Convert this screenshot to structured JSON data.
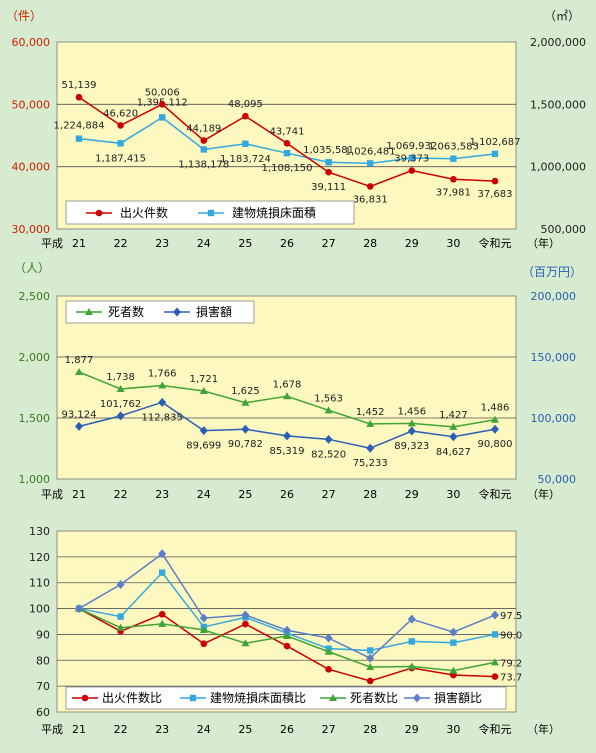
{
  "chart_data": [
    {
      "type": "line",
      "title": "",
      "ylabel_left": "（件）",
      "ylabel_right": "（㎡）",
      "x_prefix": "平成",
      "x_suffix": "（年）",
      "categories": [
        "21",
        "22",
        "23",
        "24",
        "25",
        "26",
        "27",
        "28",
        "29",
        "30",
        "令和元"
      ],
      "ylim_left": [
        30000,
        60000
      ],
      "ylim_right": [
        500000,
        2000000
      ],
      "yticks_left": [
        "30,000",
        "40,000",
        "50,000",
        "60,000"
      ],
      "yticks_right": [
        "500,000",
        "1,000,000",
        "1,500,000",
        "2,000,000"
      ],
      "legend_position": "bottom-left",
      "series": [
        {
          "name": "出火件数",
          "axis": "left",
          "color": "#cc0000",
          "marker": "circle",
          "values": [
            51139,
            46620,
            50006,
            44189,
            48095,
            43741,
            39111,
            36831,
            39373,
            37981,
            37683
          ],
          "labels": [
            "51,139",
            "46,620",
            "50,006",
            "44,189",
            "48,095",
            "43,741",
            "39,111",
            "36,831",
            "39,373",
            "37,981",
            "37,683"
          ]
        },
        {
          "name": "建物焼損床面積",
          "axis": "right",
          "color": "#33a8e0",
          "marker": "square",
          "values": [
            1224884,
            1187415,
            1395112,
            1138178,
            1183724,
            1108150,
            1035581,
            1026481,
            1069932,
            1063583,
            1102687
          ],
          "labels": [
            "1,224,884",
            "1,187,415",
            "1,395,112",
            "1,138,178",
            "1,183,724",
            "1,108,150",
            "1,035,581",
            "1,026,481",
            "1,069,932",
            "1,063,583",
            "1,102,687"
          ]
        }
      ]
    },
    {
      "type": "line",
      "title": "",
      "ylabel_left": "（人）",
      "ylabel_right": "（百万円）",
      "x_prefix": "平成",
      "x_suffix": "（年）",
      "categories": [
        "21",
        "22",
        "23",
        "24",
        "25",
        "26",
        "27",
        "28",
        "29",
        "30",
        "令和元"
      ],
      "ylim_left": [
        1000,
        2500
      ],
      "ylim_right": [
        50000,
        200000
      ],
      "yticks_left": [
        "1,000",
        "1,500",
        "2,000",
        "2,500"
      ],
      "yticks_right": [
        "50,000",
        "100,000",
        "150,000",
        "200,000"
      ],
      "legend_position": "top-left",
      "series": [
        {
          "name": "死者数",
          "axis": "left",
          "color": "#3fa535",
          "marker": "triangle",
          "values": [
            1877,
            1738,
            1766,
            1721,
            1625,
            1678,
            1563,
            1452,
            1456,
            1427,
            1486
          ],
          "labels": [
            "1,877",
            "1,738",
            "1,766",
            "1,721",
            "1,625",
            "1,678",
            "1,563",
            "1,452",
            "1,456",
            "1,427",
            "1,486"
          ]
        },
        {
          "name": "損害額",
          "axis": "right",
          "color": "#2a5fb5",
          "marker": "diamond",
          "values": [
            93124,
            101762,
            112835,
            89699,
            90782,
            85319,
            82520,
            75233,
            89323,
            84627,
            90800
          ],
          "labels": [
            "93,124",
            "101,762",
            "112,835",
            "89,699",
            "90,782",
            "85,319",
            "82,520",
            "75,233",
            "89,323",
            "84,627",
            "90,800"
          ]
        }
      ]
    },
    {
      "type": "line",
      "title": "",
      "x_prefix": "平成",
      "x_suffix": "（年）",
      "categories": [
        "21",
        "22",
        "23",
        "24",
        "25",
        "26",
        "27",
        "28",
        "29",
        "30",
        "令和元"
      ],
      "ylim": [
        60,
        130
      ],
      "yticks": [
        "60",
        "70",
        "80",
        "90",
        "100",
        "110",
        "120",
        "130"
      ],
      "legend_position": "bottom",
      "series": [
        {
          "name": "出火件数比",
          "color": "#cc0000",
          "marker": "circle",
          "values": [
            100,
            91.2,
            97.8,
            86.4,
            94.0,
            85.5,
            76.5,
            72.0,
            77.0,
            74.3,
            73.7
          ],
          "end_label": "73.7"
        },
        {
          "name": "建物焼損床面積比",
          "color": "#33a8e0",
          "marker": "square",
          "values": [
            100,
            96.9,
            113.9,
            92.9,
            96.6,
            90.5,
            84.5,
            83.8,
            87.3,
            86.8,
            90.0
          ],
          "end_label": "90.0"
        },
        {
          "name": "死者数比",
          "color": "#3fa535",
          "marker": "triangle",
          "values": [
            100,
            92.6,
            94.1,
            91.7,
            86.6,
            89.4,
            83.3,
            77.4,
            77.6,
            76.0,
            79.2
          ],
          "end_label": "79.2"
        },
        {
          "name": "損害額比",
          "color": "#5b7fc6",
          "marker": "diamond",
          "values": [
            100,
            109.3,
            121.2,
            96.3,
            97.5,
            91.6,
            88.6,
            80.8,
            95.9,
            90.9,
            97.5
          ],
          "end_label": "97.5"
        }
      ]
    }
  ]
}
